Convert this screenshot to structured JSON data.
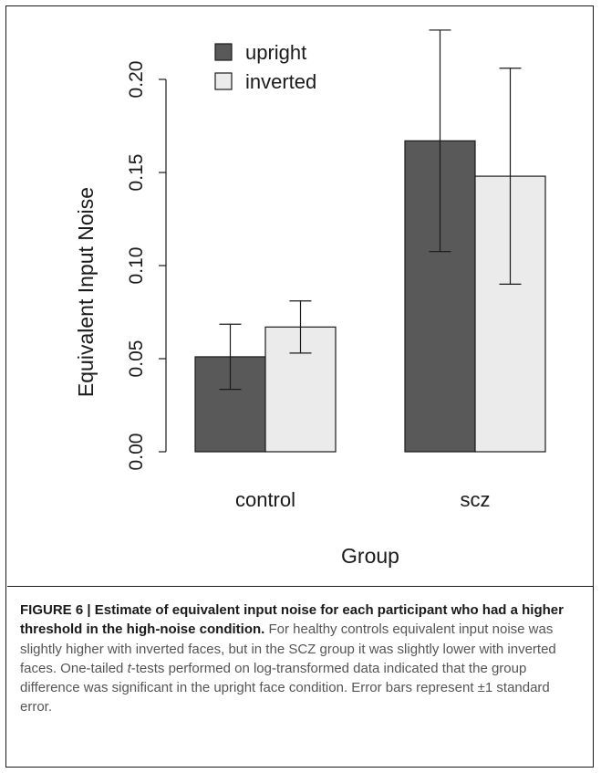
{
  "chart_data": {
    "type": "bar",
    "categories": [
      "control",
      "scz"
    ],
    "series": [
      {
        "name": "upright",
        "values": [
          0.051,
          0.167
        ],
        "errors": [
          0.0175,
          0.0595
        ],
        "color": "#595959"
      },
      {
        "name": "inverted",
        "values": [
          0.067,
          0.148
        ],
        "errors": [
          0.014,
          0.058
        ],
        "color": "#ebebeb"
      }
    ],
    "ylabel": "Equivalent Input Noise",
    "xlabel": "Group",
    "ylim": [
      0,
      0.22
    ],
    "yticks": [
      "0.00",
      "0.05",
      "0.10",
      "0.15",
      "0.20"
    ],
    "legend_position": "top-left"
  },
  "caption": {
    "label": "FIGURE 6 |",
    "title": "Estimate of equivalent input noise for each participant who had a higher threshold in the high-noise condition.",
    "body_pre": "For healthy controls equivalent input noise was slightly higher with inverted faces, but in the SCZ group it was slightly lower with inverted faces. One-tailed ",
    "body_t": "t",
    "body_post": "-tests performed on log-transformed data indicated that the group difference was significant in the upright face condition. Error bars represent ±1 standard error."
  }
}
